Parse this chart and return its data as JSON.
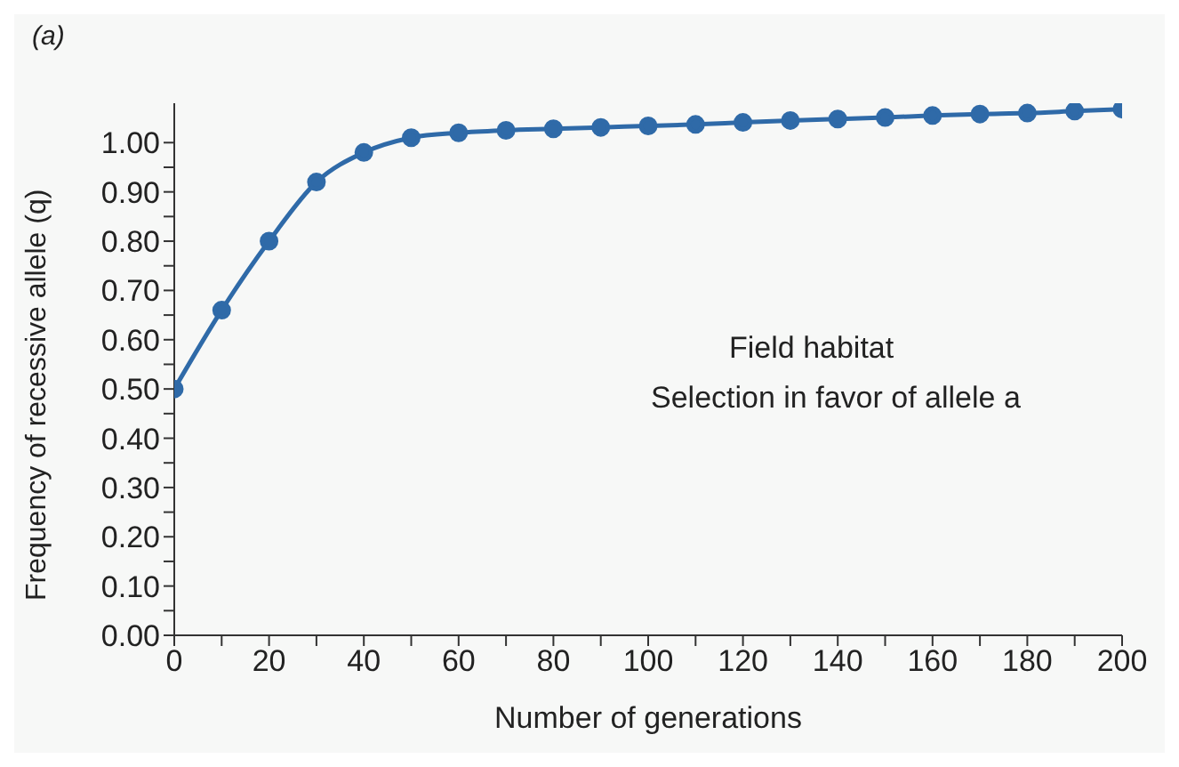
{
  "chart_data": {
    "type": "line",
    "xlabel": "Number of generations",
    "ylabel": "Frequency of recessive allele (q)",
    "annotations": [
      "(a)",
      "Field habitat",
      "Selection in favor of allele a"
    ],
    "x": [
      0,
      10,
      20,
      30,
      40,
      50,
      60,
      70,
      80,
      90,
      100,
      110,
      120,
      130,
      140,
      150,
      160,
      170,
      180,
      190,
      200
    ],
    "series": [
      {
        "color": "#2f6aa8",
        "values": [
          0.5,
          0.66,
          0.8,
          0.92,
          0.98,
          1.01,
          1.02,
          1.025,
          1.028,
          1.031,
          1.034,
          1.037,
          1.041,
          1.045,
          1.048,
          1.051,
          1.055,
          1.058,
          1.06,
          1.064,
          1.068
        ]
      }
    ],
    "xlim": [
      0,
      200
    ],
    "ylim": [
      0,
      1.08
    ],
    "xticks": [
      0,
      {
        "value": 10,
        "label": null
      },
      20,
      {
        "value": 30,
        "label": null
      },
      40,
      {
        "value": 50,
        "label": null
      },
      60,
      {
        "value": 70,
        "label": null
      },
      80,
      {
        "value": 90,
        "label": null
      },
      100,
      {
        "value": 110,
        "label": null
      },
      120,
      {
        "value": 130,
        "label": null
      },
      140,
      {
        "value": 150,
        "label": null
      },
      160,
      {
        "value": 170,
        "label": null
      },
      180,
      {
        "value": 190,
        "label": null
      },
      200
    ],
    "yticks": [
      {
        "value": 0,
        "label": "0.00"
      },
      {
        "value": 0.05,
        "label": null
      },
      {
        "value": 0.1,
        "label": "0.10"
      },
      {
        "value": 0.15,
        "label": null
      },
      {
        "value": 0.2,
        "label": "0.20"
      },
      {
        "value": 0.25,
        "label": null
      },
      {
        "value": 0.3,
        "label": "0.30"
      },
      {
        "value": 0.35,
        "label": null
      },
      {
        "value": 0.4,
        "label": "0.40"
      },
      {
        "value": 0.45,
        "label": null
      },
      {
        "value": 0.5,
        "label": "0.50"
      },
      {
        "value": 0.55,
        "label": null
      },
      {
        "value": 0.6,
        "label": "0.60"
      },
      {
        "value": 0.65,
        "label": null
      },
      {
        "value": 0.7,
        "label": "0.70"
      },
      {
        "value": 0.75,
        "label": null
      },
      {
        "value": 0.8,
        "label": "0.80"
      },
      {
        "value": 0.85,
        "label": null
      },
      {
        "value": 0.9,
        "label": "0.90"
      },
      {
        "value": 0.95,
        "label": null
      },
      {
        "value": 1.0,
        "label": "1.00"
      }
    ],
    "grid": false,
    "legend": false,
    "marker": "circle",
    "line_style": "solid"
  }
}
